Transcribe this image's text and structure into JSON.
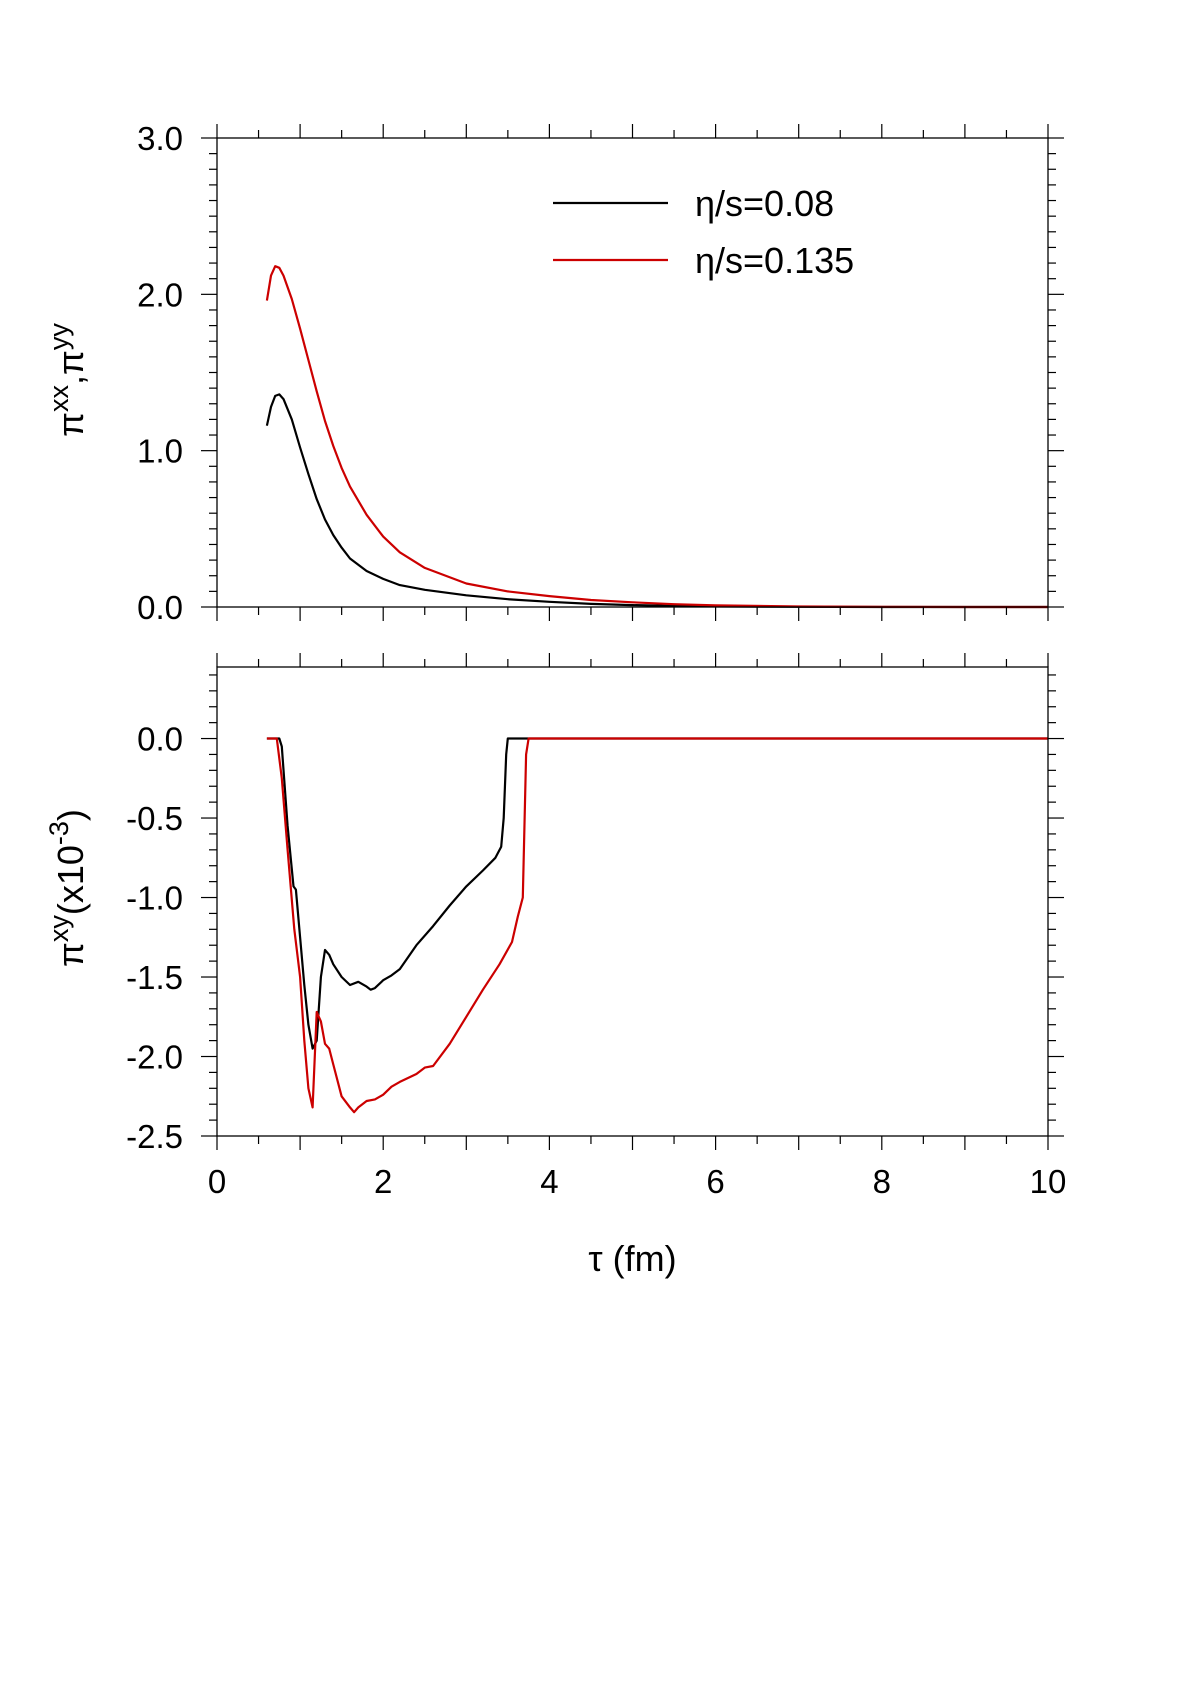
{
  "chart_data": [
    {
      "type": "line",
      "panel": "top",
      "ylabel": "πxx,πyy",
      "ylabel_parts": [
        {
          "text": "π",
          "sup": false
        },
        {
          "text": "xx",
          "sup": true
        },
        {
          "text": ",π",
          "sup": false
        },
        {
          "text": "yy",
          "sup": true
        }
      ],
      "xlim": [
        0,
        10
      ],
      "ylim": [
        0,
        3
      ],
      "yticks": [
        "0.0",
        "1.0",
        "2.0",
        "3.0"
      ],
      "yticks_values": [
        0,
        1,
        2,
        3
      ],
      "grid": false,
      "legend": {
        "position": "top-right",
        "entries": [
          {
            "label": "η/s=0.08",
            "color": "#000000"
          },
          {
            "label": "η/s=0.135",
            "color": "#cc0000"
          }
        ]
      },
      "series": [
        {
          "name": "η/s=0.08",
          "color": "#000000",
          "x": [
            0.6,
            0.65,
            0.7,
            0.75,
            0.8,
            0.9,
            1.0,
            1.1,
            1.2,
            1.3,
            1.4,
            1.5,
            1.6,
            1.8,
            2.0,
            2.2,
            2.5,
            3.0,
            3.5,
            4.0,
            4.5,
            5.0,
            5.5,
            6.0,
            7.0,
            8.0,
            9.0,
            10.0
          ],
          "y": [
            1.16,
            1.28,
            1.35,
            1.36,
            1.33,
            1.2,
            1.02,
            0.85,
            0.69,
            0.56,
            0.46,
            0.38,
            0.31,
            0.23,
            0.18,
            0.14,
            0.11,
            0.075,
            0.05,
            0.033,
            0.02,
            0.012,
            0.007,
            0.004,
            0.001,
            0,
            0,
            0
          ]
        },
        {
          "name": "η/s=0.135",
          "color": "#cc0000",
          "x": [
            0.6,
            0.65,
            0.7,
            0.75,
            0.8,
            0.9,
            1.0,
            1.1,
            1.2,
            1.3,
            1.4,
            1.5,
            1.6,
            1.8,
            2.0,
            2.2,
            2.5,
            3.0,
            3.5,
            4.0,
            4.5,
            5.0,
            5.5,
            6.0,
            7.0,
            8.0,
            9.0,
            10.0
          ],
          "y": [
            1.96,
            2.12,
            2.18,
            2.17,
            2.12,
            1.97,
            1.78,
            1.58,
            1.38,
            1.19,
            1.03,
            0.89,
            0.77,
            0.59,
            0.45,
            0.35,
            0.25,
            0.15,
            0.1,
            0.07,
            0.045,
            0.03,
            0.018,
            0.01,
            0.003,
            0.001,
            0,
            0
          ]
        }
      ]
    },
    {
      "type": "line",
      "panel": "bottom",
      "xlabel": "τ (fm)",
      "ylabel": "πxy(x10-3)",
      "ylabel_parts": [
        {
          "text": "π",
          "sup": false
        },
        {
          "text": "xy",
          "sup": true
        },
        {
          "text": "(x10",
          "sup": false
        },
        {
          "text": "-3",
          "sup": true
        },
        {
          "text": ")",
          "sup": false
        }
      ],
      "xlim": [
        0,
        10
      ],
      "ylim": [
        -2.5,
        0.45
      ],
      "xticks": [
        "0",
        "2",
        "4",
        "6",
        "8",
        "10"
      ],
      "xticks_values": [
        0,
        2,
        4,
        6,
        8,
        10
      ],
      "yticks": [
        "-2.5",
        "-2.0",
        "-1.5",
        "-1.0",
        "-0.5",
        "0.0"
      ],
      "yticks_values": [
        -2.5,
        -2.0,
        -1.5,
        -1.0,
        -0.5,
        0.0
      ],
      "grid": false,
      "series": [
        {
          "name": "η/s=0.08",
          "color": "#000000",
          "x": [
            0.6,
            0.75,
            0.78,
            0.85,
            0.92,
            0.95,
            1.0,
            1.05,
            1.1,
            1.15,
            1.2,
            1.25,
            1.3,
            1.35,
            1.4,
            1.5,
            1.6,
            1.7,
            1.8,
            1.85,
            1.9,
            2.0,
            2.1,
            2.2,
            2.4,
            2.6,
            2.8,
            3.0,
            3.2,
            3.35,
            3.42,
            3.45,
            3.48,
            3.5,
            3.7,
            10.0
          ],
          "y": [
            0,
            0,
            -0.05,
            -0.55,
            -0.93,
            -0.95,
            -1.25,
            -1.55,
            -1.8,
            -1.95,
            -1.9,
            -1.5,
            -1.33,
            -1.36,
            -1.42,
            -1.5,
            -1.55,
            -1.53,
            -1.56,
            -1.58,
            -1.57,
            -1.52,
            -1.49,
            -1.45,
            -1.3,
            -1.18,
            -1.05,
            -0.93,
            -0.83,
            -0.75,
            -0.68,
            -0.5,
            -0.1,
            0,
            0,
            0
          ]
        },
        {
          "name": "η/s=0.135",
          "color": "#cc0000",
          "x": [
            0.6,
            0.72,
            0.78,
            0.85,
            0.93,
            1.0,
            1.05,
            1.1,
            1.15,
            1.2,
            1.25,
            1.3,
            1.35,
            1.4,
            1.5,
            1.6,
            1.65,
            1.7,
            1.8,
            1.9,
            2.0,
            2.1,
            2.2,
            2.4,
            2.5,
            2.6,
            2.8,
            3.0,
            3.2,
            3.4,
            3.55,
            3.62,
            3.68,
            3.72,
            3.75,
            10.0
          ],
          "y": [
            0,
            0,
            -0.25,
            -0.7,
            -1.2,
            -1.5,
            -1.9,
            -2.2,
            -2.32,
            -1.72,
            -1.78,
            -1.92,
            -1.95,
            -2.05,
            -2.25,
            -2.32,
            -2.35,
            -2.32,
            -2.28,
            -2.27,
            -2.24,
            -2.19,
            -2.16,
            -2.11,
            -2.07,
            -2.06,
            -1.92,
            -1.75,
            -1.58,
            -1.42,
            -1.28,
            -1.12,
            -1.0,
            -0.1,
            0,
            0
          ]
        }
      ]
    }
  ]
}
